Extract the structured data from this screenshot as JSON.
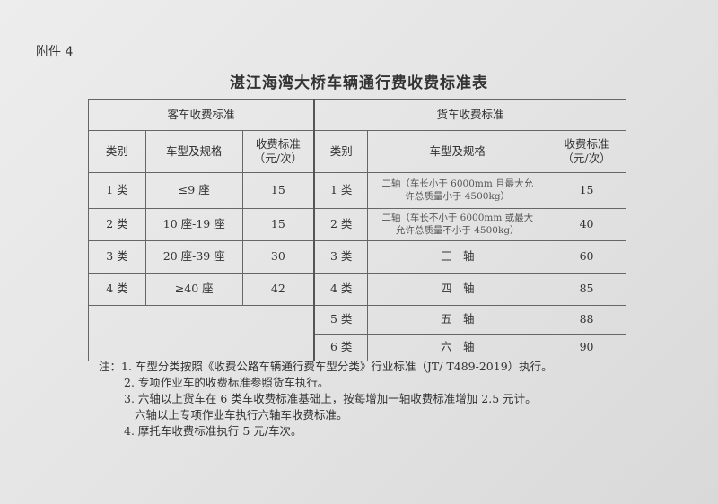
{
  "annex": "附件 4",
  "title": "湛江海湾大桥车辆通行费收费标准表",
  "passenger": {
    "header": "客车收费标准",
    "cols": [
      "类别",
      "车型及规格",
      "收费标准（元/次）"
    ],
    "rows": [
      [
        "1 类",
        "≤9 座",
        "15"
      ],
      [
        "2 类",
        "10 座-19 座",
        "15"
      ],
      [
        "3 类",
        "20 座-39 座",
        "30"
      ],
      [
        "4 类",
        "≥40 座",
        "42"
      ]
    ]
  },
  "truck": {
    "header": "货车收费标准",
    "cols": [
      "类别",
      "车型及规格",
      "收费标准（元/次）"
    ],
    "rows": [
      [
        "1 类",
        "二轴（车长小于 6000mm 且最大允许总质量小于 4500kg）",
        "15"
      ],
      [
        "2 类",
        "二轴（车长不小于 6000mm 或最大允许总质量不小于 4500kg）",
        "40"
      ],
      [
        "3 类",
        "三　轴",
        "60"
      ],
      [
        "4 类",
        "四　轴",
        "85"
      ],
      [
        "5 类",
        "五　轴",
        "88"
      ],
      [
        "6 类",
        "六　轴",
        "90"
      ]
    ]
  },
  "notes": [
    "注：1. 车型分类按照《收费公路车辆通行费车型分类》行业标准（JT/ T489-2019）执行。",
    "2. 专项作业车的收费标准参照货车执行。",
    "3. 六轴以上货车在 6 类车收费标准基础上，按每增加一轴收费标准增加 2.5 元计。",
    "六轴以上专项作业车执行六轴车收费标准。",
    "4. 摩托车收费标准执行 5 元/车次。"
  ]
}
